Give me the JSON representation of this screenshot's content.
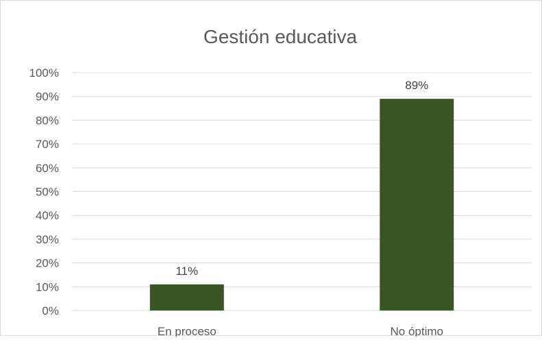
{
  "chart_data": {
    "type": "bar",
    "title": "Gestión educativa",
    "categories": [
      "En proceso",
      "No óptimo"
    ],
    "values": [
      11,
      89
    ],
    "value_labels": [
      "11%",
      "89%"
    ],
    "y_ticks": [
      "0%",
      "10%",
      "20%",
      "30%",
      "40%",
      "50%",
      "60%",
      "70%",
      "80%",
      "90%",
      "100%"
    ],
    "ylim": [
      0,
      100
    ],
    "xlabel": "",
    "ylabel": "",
    "grid": true,
    "legend": "none",
    "bar_color": "#375623",
    "grid_color": "#d9d9d9",
    "text_color": "#595959"
  }
}
